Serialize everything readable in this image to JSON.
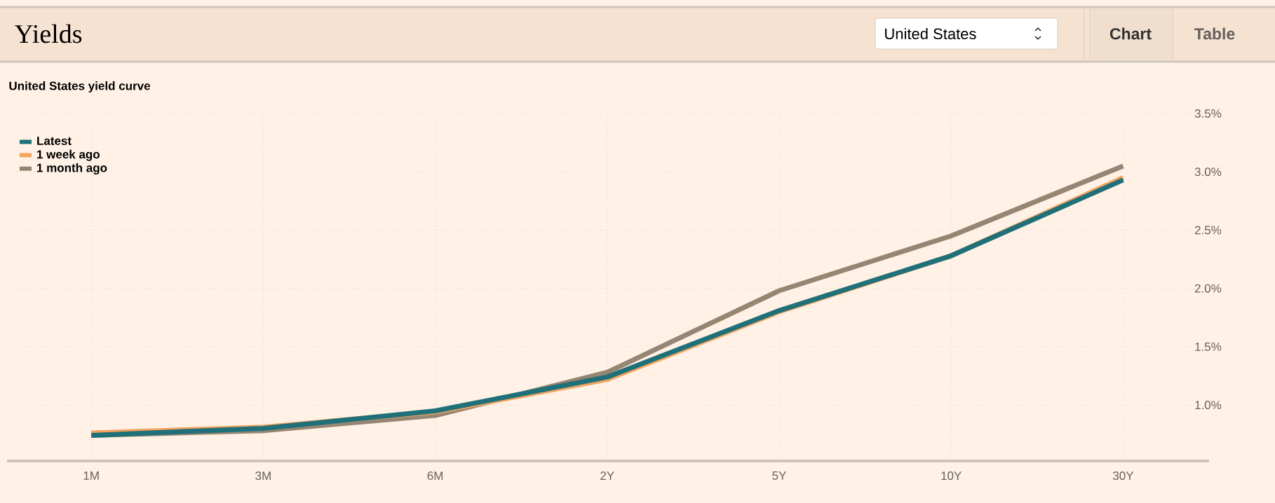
{
  "chart_data": {
    "type": "line",
    "title": "Yields",
    "subtitle": "United States yield curve",
    "annotations": [
      "United States",
      "Chart",
      "Table"
    ],
    "categories": [
      "1M",
      "3M",
      "6M",
      "2Y",
      "5Y",
      "10Y",
      "30Y"
    ],
    "series": [
      {
        "name": "Latest",
        "color": "#1f7079",
        "values": [
          0.74,
          0.8,
          0.95,
          1.24,
          1.81,
          2.28,
          2.93
        ]
      },
      {
        "name": "1 week ago",
        "color": "#f2a35e",
        "values": [
          0.76,
          0.81,
          0.94,
          1.22,
          1.8,
          2.28,
          2.95
        ]
      },
      {
        "name": "1 month ago",
        "color": "#958572",
        "values": [
          0.74,
          0.78,
          0.91,
          1.28,
          1.98,
          2.45,
          3.05
        ]
      }
    ],
    "ylim": [
      0.52,
      3.5
    ],
    "yticks": [
      {
        "value": 1.0,
        "label": "1.0%"
      },
      {
        "value": 1.5,
        "label": "1.5%"
      },
      {
        "value": 2.0,
        "label": "2.0%"
      },
      {
        "value": 2.5,
        "label": "2.5%"
      },
      {
        "value": 3.0,
        "label": "3.0%"
      },
      {
        "value": 3.5,
        "label": "3.5%"
      }
    ],
    "grid": true,
    "legend": "top left"
  }
}
